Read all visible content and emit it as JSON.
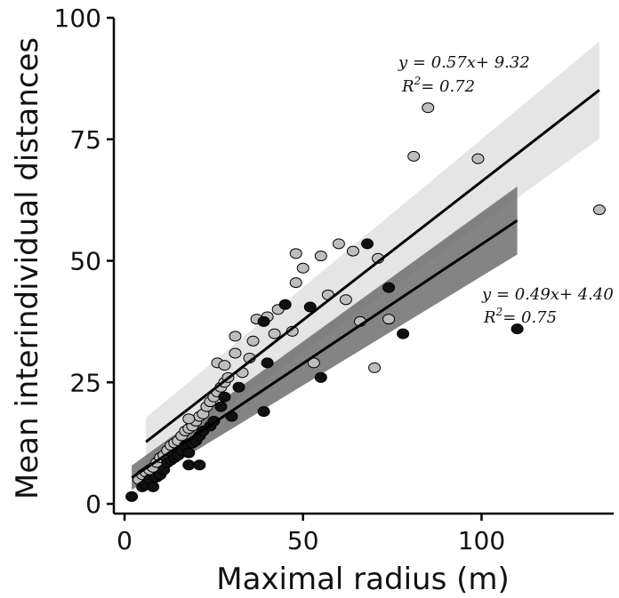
{
  "chart_data": {
    "type": "scatter",
    "xlabel": "Maximal radius (m)",
    "ylabel": "Mean interindividual distances",
    "xlim": [
      -3,
      137
    ],
    "ylim": [
      -2,
      100
    ],
    "x_ticks": [
      0,
      50,
      100
    ],
    "y_ticks": [
      0,
      25,
      50,
      75,
      100
    ],
    "x_tick_labels": [
      "0",
      "50",
      "100"
    ],
    "y_tick_labels": [
      "0",
      "25",
      "50",
      "75",
      "100"
    ],
    "grid": false,
    "colors": {
      "gray_points": "#bdbdbd",
      "black_points": "#111111",
      "gray_band": "#e0e0e0",
      "dark_band": "#6f6f6f",
      "line": "#000000"
    },
    "series": [
      {
        "marker": "gray",
        "points": [
          [
            4,
            5
          ],
          [
            5,
            6
          ],
          [
            6,
            6.5
          ],
          [
            7,
            7
          ],
          [
            8,
            7.5
          ],
          [
            9,
            8.5
          ],
          [
            10,
            9.5
          ],
          [
            11,
            10
          ],
          [
            12,
            11
          ],
          [
            13,
            12
          ],
          [
            14,
            12.5
          ],
          [
            15,
            13
          ],
          [
            16,
            14
          ],
          [
            17,
            15
          ],
          [
            18,
            15.5
          ],
          [
            19,
            16
          ],
          [
            20,
            17
          ],
          [
            21,
            18
          ],
          [
            22,
            18.5
          ],
          [
            23,
            20
          ],
          [
            24,
            21
          ],
          [
            25,
            22
          ],
          [
            26,
            23
          ],
          [
            27,
            24
          ],
          [
            28,
            25
          ],
          [
            29,
            26
          ],
          [
            18,
            17.5
          ],
          [
            26,
            29
          ],
          [
            28,
            28.5
          ],
          [
            31,
            31
          ],
          [
            31,
            34.5
          ],
          [
            33,
            27
          ],
          [
            35,
            30
          ],
          [
            36,
            33.5
          ],
          [
            37,
            38
          ],
          [
            40,
            38.5
          ],
          [
            42,
            35
          ],
          [
            43,
            40
          ],
          [
            47,
            35.5
          ],
          [
            48,
            51.5
          ],
          [
            48,
            45.5
          ],
          [
            50,
            48.5
          ],
          [
            53,
            29
          ],
          [
            55,
            51
          ],
          [
            57,
            43
          ],
          [
            60,
            53.5
          ],
          [
            62,
            42
          ],
          [
            64,
            52
          ],
          [
            66,
            37.5
          ],
          [
            70,
            28
          ],
          [
            71,
            50.5
          ],
          [
            74,
            38
          ],
          [
            81,
            71.5
          ],
          [
            85,
            81.5
          ],
          [
            99,
            71
          ],
          [
            133,
            60.5
          ]
        ]
      },
      {
        "marker": "black",
        "points": [
          [
            2,
            1.5
          ],
          [
            5,
            3.5
          ],
          [
            6,
            4
          ],
          [
            7,
            5
          ],
          [
            8,
            3.5
          ],
          [
            9,
            5.5
          ],
          [
            10,
            6
          ],
          [
            11,
            7
          ],
          [
            12,
            8.5
          ],
          [
            13,
            9
          ],
          [
            14,
            9.5
          ],
          [
            15,
            10
          ],
          [
            16,
            11
          ],
          [
            17,
            12
          ],
          [
            18,
            10.5
          ],
          [
            19,
            12.5
          ],
          [
            20,
            13
          ],
          [
            21,
            14
          ],
          [
            22,
            15
          ],
          [
            24,
            16
          ],
          [
            25,
            17
          ],
          [
            27,
            20
          ],
          [
            18,
            8
          ],
          [
            21,
            8
          ],
          [
            28,
            22
          ],
          [
            30,
            18
          ],
          [
            32,
            24
          ],
          [
            39,
            19
          ],
          [
            40,
            29
          ],
          [
            39,
            37.5
          ],
          [
            45,
            41
          ],
          [
            52,
            40.5
          ],
          [
            55,
            26
          ],
          [
            68,
            53.5
          ],
          [
            74,
            44.5
          ],
          [
            78,
            35
          ],
          [
            110,
            36
          ]
        ]
      }
    ],
    "fits": [
      {
        "slope": 0.57,
        "intercept": 9.32,
        "x_range": [
          6,
          133
        ],
        "band_half_width_at_ends": [
          5,
          10
        ],
        "equation": "y = 0.57x+ 9.32",
        "r2_prefix": "R",
        "r2_sup": "2",
        "r2_value": "= 0.72"
      },
      {
        "slope": 0.49,
        "intercept": 4.4,
        "x_range": [
          2,
          110
        ],
        "band_half_width_at_ends": [
          2.5,
          7
        ],
        "equation": "y = 0.49x+ 4.40",
        "r2_prefix": "R",
        "r2_sup": "2",
        "r2_value": "= 0.75"
      }
    ]
  }
}
